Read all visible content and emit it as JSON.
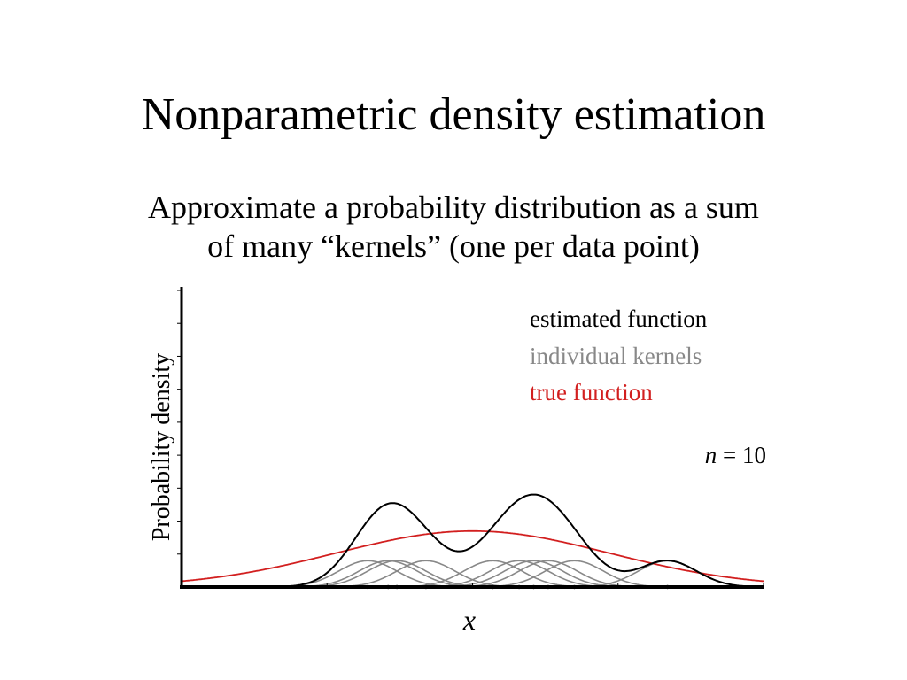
{
  "slide": {
    "title": "Nonparametric density estimation",
    "subtitle_line1": "Approximate a probability distribution as a sum",
    "subtitle_line2": "of many “kernels” (one per data point)"
  },
  "chart_data": {
    "type": "line",
    "title": "",
    "xlabel": "x",
    "ylabel": "Probability density",
    "xlim": [
      -10,
      10
    ],
    "ylim": [
      0,
      0.45
    ],
    "grid": false,
    "legend_position": "top-right",
    "annotation": {
      "variable": "n",
      "equals": " = ",
      "value": "10"
    },
    "kernel_bandwidth": 1,
    "data_points": [
      -3.6,
      -2.9,
      -2.6,
      -1.6,
      0.7,
      1.6,
      2.1,
      2.6,
      3.5,
      6.7
    ],
    "true_function": {
      "type": "normal",
      "mean": 0,
      "sd": 4.7
    },
    "series": [
      {
        "name": "estimated function",
        "color": "#000000"
      },
      {
        "name": "individual kernels",
        "color": "#888888"
      },
      {
        "name": "true function",
        "color": "#d21f1f"
      }
    ]
  }
}
